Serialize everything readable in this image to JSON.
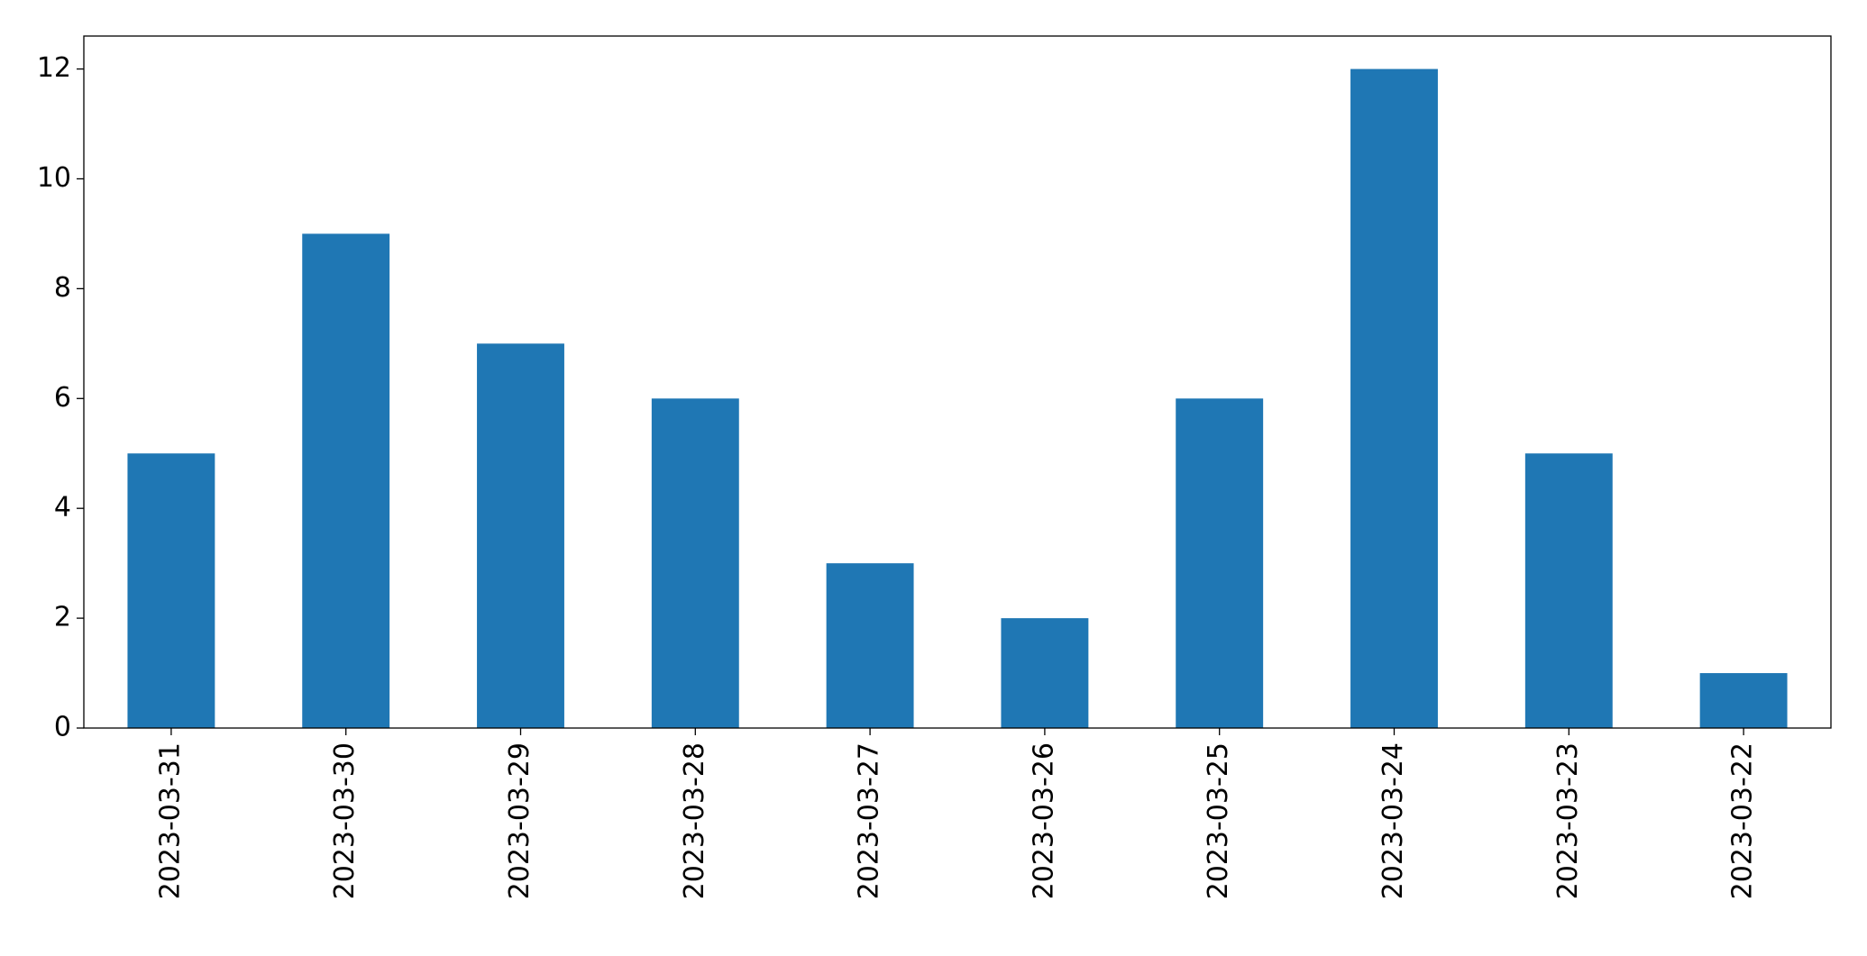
{
  "chart_data": {
    "type": "bar",
    "categories": [
      "2023-03-31",
      "2023-03-30",
      "2023-03-29",
      "2023-03-28",
      "2023-03-27",
      "2023-03-26",
      "2023-03-25",
      "2023-03-24",
      "2023-03-23",
      "2023-03-22"
    ],
    "values": [
      5,
      9,
      7,
      6,
      3,
      2,
      6,
      12,
      5,
      1
    ],
    "color": "#1f77b4",
    "ylim": [
      0,
      12.6
    ],
    "yticks": [
      0,
      2,
      4,
      6,
      8,
      10,
      12
    ],
    "grid": false
  }
}
